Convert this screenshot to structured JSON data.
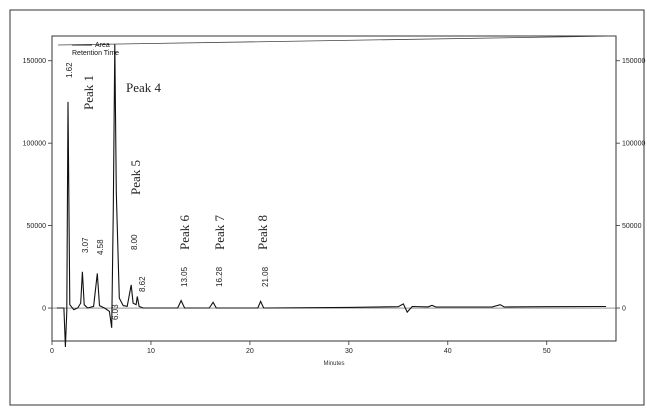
{
  "chart_data": {
    "type": "line",
    "xlabel": "Minutes",
    "xlim": [
      0,
      57
    ],
    "ylim": [
      -20000,
      165000
    ],
    "x_ticks": [
      0,
      10,
      20,
      30,
      40,
      50
    ],
    "y_ticks_left": [
      "0",
      "50000",
      "100000",
      "150000"
    ],
    "y_ticks_right": [
      "0",
      "50000",
      "100000",
      "150000"
    ],
    "legend": {
      "placement": "top-left",
      "entries": [
        "Area",
        "Retention Time"
      ]
    },
    "peak_labels": [
      {
        "label": "Peak 1",
        "x": 1.62
      },
      {
        "label": "Peak 4",
        "x": 6.35
      },
      {
        "label": "Peak 5",
        "x": 8.0
      },
      {
        "label": "Peak 6",
        "x": 13.05
      },
      {
        "label": "Peak 7",
        "x": 16.28
      },
      {
        "label": "Peak 8",
        "x": 21.08
      }
    ],
    "retention_labels": [
      "1.62",
      "3.07",
      "4.58",
      "6.03",
      "8.00",
      "8.62",
      "13.05",
      "16.28",
      "21.08"
    ],
    "series": [
      {
        "points": [
          [
            0.5,
            0
          ],
          [
            1.2,
            0
          ],
          [
            1.35,
            -25000
          ],
          [
            1.5,
            -2000
          ],
          [
            1.62,
            125000
          ],
          [
            1.8,
            2000
          ],
          [
            2.2,
            -1000
          ],
          [
            2.6,
            0
          ],
          [
            2.9,
            3000
          ],
          [
            3.07,
            22000
          ],
          [
            3.25,
            2000
          ],
          [
            3.6,
            0
          ],
          [
            4.2,
            1000
          ],
          [
            4.58,
            21000
          ],
          [
            4.8,
            1500
          ],
          [
            5.3,
            0
          ],
          [
            5.8,
            -2000
          ],
          [
            6.03,
            -12000
          ],
          [
            6.2,
            60000
          ],
          [
            6.35,
            160000
          ],
          [
            6.5,
            70000
          ],
          [
            6.8,
            6000
          ],
          [
            7.2,
            1500
          ],
          [
            7.6,
            1000
          ],
          [
            8.0,
            14000
          ],
          [
            8.2,
            3000
          ],
          [
            8.5,
            2000
          ],
          [
            8.62,
            7000
          ],
          [
            8.8,
            1000
          ],
          [
            9.2,
            0
          ],
          [
            12.7,
            0
          ],
          [
            13.05,
            4500
          ],
          [
            13.4,
            0
          ],
          [
            15.9,
            0
          ],
          [
            16.28,
            3500
          ],
          [
            16.6,
            0
          ],
          [
            20.8,
            0
          ],
          [
            21.08,
            4000
          ],
          [
            21.4,
            0
          ],
          [
            30,
            400
          ],
          [
            35,
            800
          ],
          [
            35.5,
            2500
          ],
          [
            35.9,
            -2500
          ],
          [
            36.4,
            900
          ],
          [
            38,
            700
          ],
          [
            38.4,
            1600
          ],
          [
            38.8,
            600
          ],
          [
            44.5,
            700
          ],
          [
            45.3,
            2000
          ],
          [
            45.7,
            600
          ],
          [
            50,
            800
          ],
          [
            56,
            900
          ]
        ]
      }
    ]
  }
}
